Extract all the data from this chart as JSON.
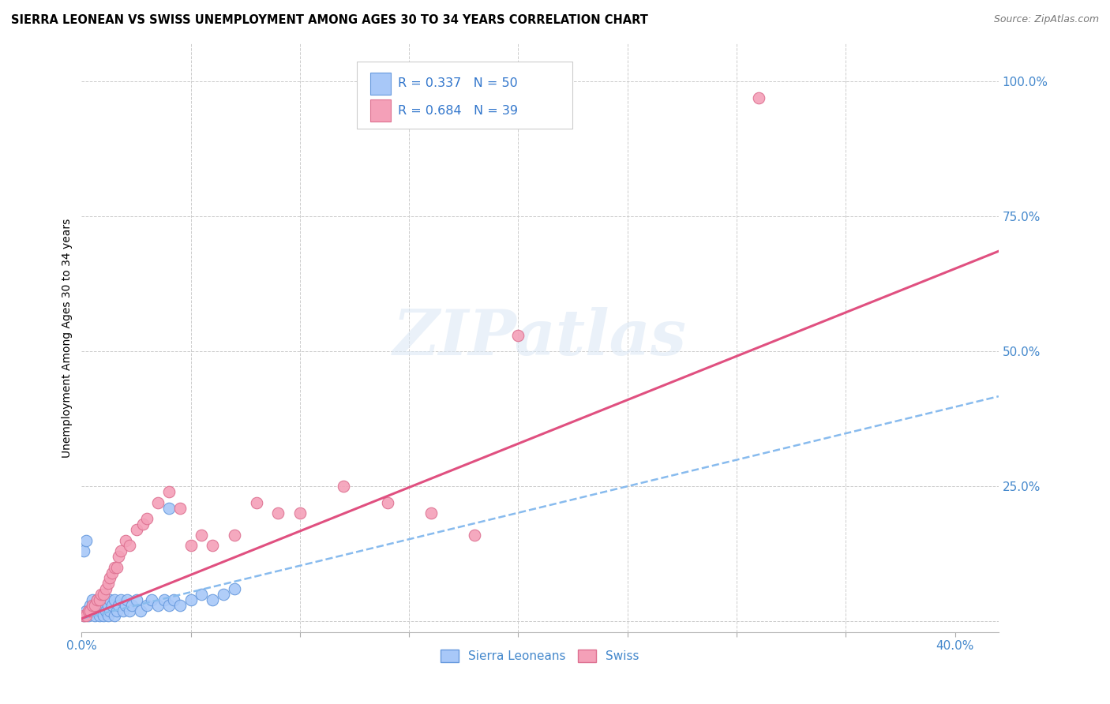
{
  "title": "SIERRA LEONEAN VS SWISS UNEMPLOYMENT AMONG AGES 30 TO 34 YEARS CORRELATION CHART",
  "source": "Source: ZipAtlas.com",
  "ylabel": "Unemployment Among Ages 30 to 34 years",
  "xlim": [
    0.0,
    0.42
  ],
  "ylim": [
    -0.02,
    1.07
  ],
  "color_sl": "#a8c8f8",
  "color_sl_edge": "#6699dd",
  "color_swiss": "#f4a0b8",
  "color_swiss_edge": "#dd7090",
  "color_blue_line": "#88bbee",
  "color_pink_line": "#e05080",
  "watermark": "ZIPatlas",
  "sl_trend_slope": 0.98,
  "sl_trend_intercept": 0.005,
  "sw_trend_slope": 1.62,
  "sw_trend_intercept": 0.005,
  "sl_x": [
    0.001,
    0.002,
    0.003,
    0.004,
    0.005,
    0.005,
    0.006,
    0.006,
    0.007,
    0.007,
    0.008,
    0.008,
    0.009,
    0.009,
    0.01,
    0.01,
    0.011,
    0.011,
    0.012,
    0.012,
    0.013,
    0.013,
    0.014,
    0.015,
    0.015,
    0.016,
    0.017,
    0.018,
    0.019,
    0.02,
    0.021,
    0.022,
    0.023,
    0.025,
    0.027,
    0.03,
    0.032,
    0.035,
    0.038,
    0.04,
    0.042,
    0.045,
    0.05,
    0.055,
    0.06,
    0.065,
    0.07,
    0.04,
    0.001,
    0.002
  ],
  "sl_y": [
    0.01,
    0.02,
    0.01,
    0.03,
    0.02,
    0.04,
    0.01,
    0.03,
    0.02,
    0.04,
    0.01,
    0.03,
    0.02,
    0.04,
    0.01,
    0.03,
    0.02,
    0.04,
    0.01,
    0.03,
    0.02,
    0.04,
    0.03,
    0.01,
    0.04,
    0.02,
    0.03,
    0.04,
    0.02,
    0.03,
    0.04,
    0.02,
    0.03,
    0.04,
    0.02,
    0.03,
    0.04,
    0.03,
    0.04,
    0.03,
    0.04,
    0.03,
    0.04,
    0.05,
    0.04,
    0.05,
    0.06,
    0.21,
    0.13,
    0.15
  ],
  "swiss_x": [
    0.001,
    0.002,
    0.003,
    0.004,
    0.005,
    0.006,
    0.007,
    0.008,
    0.009,
    0.01,
    0.011,
    0.012,
    0.013,
    0.014,
    0.015,
    0.016,
    0.017,
    0.018,
    0.02,
    0.022,
    0.025,
    0.028,
    0.03,
    0.035,
    0.04,
    0.045,
    0.05,
    0.055,
    0.06,
    0.07,
    0.08,
    0.09,
    0.1,
    0.12,
    0.14,
    0.16,
    0.18,
    0.2,
    0.31
  ],
  "swiss_y": [
    0.01,
    0.01,
    0.02,
    0.02,
    0.03,
    0.03,
    0.04,
    0.04,
    0.05,
    0.05,
    0.06,
    0.07,
    0.08,
    0.09,
    0.1,
    0.1,
    0.12,
    0.13,
    0.15,
    0.14,
    0.17,
    0.18,
    0.19,
    0.22,
    0.24,
    0.21,
    0.14,
    0.16,
    0.14,
    0.16,
    0.22,
    0.2,
    0.2,
    0.25,
    0.22,
    0.2,
    0.16,
    0.53,
    0.97
  ]
}
